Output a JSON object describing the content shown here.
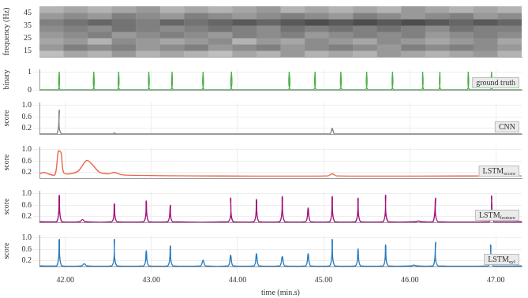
{
  "chart_data": [
    {
      "type": "heatmap",
      "y_label": "frequency (Hz)",
      "xlim": [
        41.7,
        47.3
      ],
      "ylim": [
        10,
        50
      ],
      "yticks": [
        15,
        25,
        35,
        45
      ],
      "xticks": [
        {
          "value": 42,
          "label": "42.00"
        },
        {
          "value": 43,
          "label": "43.00"
        },
        {
          "value": 44,
          "label": "44.00"
        },
        {
          "value": 45,
          "label": "45.00"
        },
        {
          "value": 46,
          "label": "46.00"
        },
        {
          "value": 47,
          "label": "47.00"
        }
      ],
      "tick_labels": "y",
      "grid": false,
      "cells": [
        [
          0.25,
          0.35,
          0.3,
          0.4,
          0.3,
          0.35,
          0.3,
          0.25,
          0.35,
          0.3,
          0.4,
          0.3,
          0.35,
          0.3,
          0.4,
          0.35,
          0.3,
          0.35,
          0.4,
          0.3
        ],
        [
          0.4,
          0.5,
          0.45,
          0.5,
          0.4,
          0.45,
          0.5,
          0.4,
          0.45,
          0.5,
          0.4,
          0.45,
          0.5,
          0.45,
          0.4,
          0.5,
          0.45,
          0.5,
          0.45,
          0.4
        ],
        [
          0.35,
          0.4,
          0.3,
          0.45,
          0.4,
          0.35,
          0.4,
          0.45,
          0.3,
          0.4,
          0.35,
          0.45,
          0.4,
          0.35,
          0.45,
          0.4,
          0.35,
          0.4,
          0.45,
          0.35
        ],
        [
          0.4,
          0.45,
          0.5,
          0.4,
          0.45,
          0.5,
          0.45,
          0.4,
          0.5,
          0.45,
          0.5,
          0.4,
          0.45,
          0.5,
          0.45,
          0.5,
          0.4,
          0.45,
          0.5,
          0.45
        ],
        [
          0.45,
          0.5,
          0.45,
          0.55,
          0.5,
          0.45,
          0.5,
          0.55,
          0.5,
          0.45,
          0.55,
          0.5,
          0.55,
          0.5,
          0.55,
          0.5,
          0.45,
          0.55,
          0.5,
          0.5
        ],
        [
          0.5,
          0.55,
          0.6,
          0.55,
          0.5,
          0.6,
          0.55,
          0.6,
          0.65,
          0.6,
          0.65,
          0.7,
          0.65,
          0.7,
          0.65,
          0.7,
          0.65,
          0.6,
          0.65,
          0.6
        ],
        [
          0.4,
          0.45,
          0.4,
          0.5,
          0.45,
          0.4,
          0.5,
          0.45,
          0.4,
          0.45,
          0.5,
          0.45,
          0.4,
          0.5,
          0.45,
          0.4,
          0.45,
          0.5,
          0.4,
          0.45
        ],
        [
          0.3,
          0.35,
          0.3,
          0.35,
          0.4,
          0.3,
          0.35,
          0.3,
          0.35,
          0.4,
          0.3,
          0.35,
          0.3,
          0.35,
          0.3,
          0.4,
          0.35,
          0.3,
          0.35,
          0.3
        ]
      ]
    },
    {
      "type": "line",
      "y_label": "binary",
      "legend": "lower right",
      "xlim": [
        41.7,
        47.3
      ],
      "ylim": [
        0,
        1.15
      ],
      "yticks": [
        0,
        1
      ],
      "xticks": [
        {
          "value": 42,
          "label": "42.00"
        },
        {
          "value": 43,
          "label": "43.00"
        },
        {
          "value": 44,
          "label": "44.00"
        },
        {
          "value": 45,
          "label": "45.00"
        },
        {
          "value": 46,
          "label": "46.00"
        },
        {
          "value": 47,
          "label": "47.00"
        }
      ],
      "tick_labels": "y",
      "grid": true,
      "series": [
        {
          "name": "ground truth",
          "color": "#4daf4a",
          "x": [
            41.7,
            41.915,
            41.93,
            41.945,
            42.315,
            42.33,
            42.345,
            42.605,
            42.62,
            42.635,
            42.955,
            42.97,
            42.985,
            43.225,
            43.24,
            43.255,
            43.585,
            43.6,
            43.615,
            43.915,
            43.93,
            43.945,
            44.585,
            44.6,
            44.615,
            44.885,
            44.9,
            44.915,
            45.185,
            45.2,
            45.215,
            45.485,
            45.5,
            45.515,
            45.785,
            45.8,
            45.815,
            46.135,
            46.15,
            46.165,
            46.335,
            46.35,
            46.365,
            46.665,
            46.68,
            46.695,
            46.935,
            46.95,
            46.965,
            47.3
          ],
          "values": [
            0,
            0,
            1,
            0,
            0,
            1,
            0,
            0,
            1,
            0,
            0,
            1,
            0,
            0,
            1,
            0,
            0,
            1,
            0,
            0,
            1,
            0,
            0,
            1,
            0,
            0,
            1,
            0,
            0,
            1,
            0,
            0,
            1,
            0,
            0,
            1,
            0,
            0,
            1,
            0,
            0,
            1,
            0,
            0,
            1,
            0,
            0,
            1,
            0,
            0
          ]
        }
      ]
    },
    {
      "type": "line",
      "y_label": "score",
      "legend": "lower right",
      "xlim": [
        41.7,
        47.3
      ],
      "ylim": [
        0,
        1.1
      ],
      "yticks": [
        0.2,
        0.6,
        {
          "value": 1,
          "label": "1.0"
        }
      ],
      "xticks": [
        {
          "value": 42,
          "label": "42.00"
        },
        {
          "value": 43,
          "label": "43.00"
        },
        {
          "value": 44,
          "label": "44.00"
        },
        {
          "value": 45,
          "label": "45.00"
        },
        {
          "value": 46,
          "label": "46.00"
        },
        {
          "value": 47,
          "label": "47.00"
        }
      ],
      "tick_labels": "y",
      "grid": true,
      "series": [
        {
          "name": "CNN",
          "color": "#808080",
          "x": [
            41.7,
            41.9,
            41.93,
            41.96,
            42.55,
            42.57,
            42.59,
            45.07,
            45.1,
            45.13,
            47.3
          ],
          "values": [
            0,
            0,
            0.83,
            0,
            0,
            0.04,
            0,
            0,
            0.2,
            0,
            0
          ]
        }
      ]
    },
    {
      "type": "line",
      "y_label": "score",
      "legend": "lower right",
      "xlim": [
        41.7,
        47.3
      ],
      "ylim": [
        0,
        1.1
      ],
      "yticks": [
        0.2,
        0.6,
        {
          "value": 1,
          "label": "1.0"
        }
      ],
      "xticks": [
        {
          "value": 42,
          "label": "42.00"
        },
        {
          "value": 43,
          "label": "43.00"
        },
        {
          "value": 44,
          "label": "44.00"
        },
        {
          "value": 45,
          "label": "45.00"
        },
        {
          "value": 46,
          "label": "46.00"
        },
        {
          "value": 47,
          "label": "47.00"
        }
      ],
      "tick_labels": "y",
      "grid": true,
      "series": [
        {
          "name": "LSTM",
          "subscript": "score",
          "color": "#e8674a",
          "x": [
            41.7,
            41.75,
            41.8,
            41.88,
            41.92,
            41.95,
            41.98,
            42.05,
            42.15,
            42.25,
            42.32,
            42.4,
            42.5,
            42.57,
            42.65,
            42.8,
            43.5,
            45.05,
            45.1,
            45.15,
            47.3
          ],
          "values": [
            0.15,
            0.2,
            0.15,
            0.12,
            0.95,
            0.9,
            0.2,
            0.15,
            0.25,
            0.62,
            0.45,
            0.2,
            0.15,
            0.2,
            0.12,
            0.1,
            0.08,
            0.08,
            0.15,
            0.08,
            0.08
          ]
        }
      ]
    },
    {
      "type": "line",
      "y_label": "score",
      "legend": "lower right",
      "xlim": [
        41.7,
        47.3
      ],
      "ylim": [
        0,
        1.1
      ],
      "yticks": [
        0.2,
        0.6,
        {
          "value": 1,
          "label": "1.0"
        }
      ],
      "xticks": [
        {
          "value": 42,
          "label": "42.00"
        },
        {
          "value": 43,
          "label": "43.00"
        },
        {
          "value": 44,
          "label": "44.00"
        },
        {
          "value": 45,
          "label": "45.00"
        },
        {
          "value": 46,
          "label": "46.00"
        },
        {
          "value": 47,
          "label": "47.00"
        }
      ],
      "tick_labels": "y",
      "grid": true,
      "series": [
        {
          "name": "LSTM",
          "subscript": "feature",
          "color": "#a0127a",
          "x": [
            41.7,
            41.9,
            41.93,
            41.96,
            42.17,
            42.2,
            42.23,
            42.54,
            42.57,
            42.6,
            42.91,
            42.94,
            42.97,
            43.19,
            43.22,
            43.25,
            43.89,
            43.92,
            43.95,
            44.19,
            44.22,
            44.25,
            44.49,
            44.52,
            44.55,
            44.79,
            44.82,
            44.85,
            45.07,
            45.1,
            45.13,
            45.37,
            45.4,
            45.43,
            45.69,
            45.72,
            45.75,
            46.07,
            46.1,
            46.13,
            46.27,
            46.3,
            46.33,
            46.92,
            46.95,
            46.98,
            47.3
          ],
          "values": [
            0.02,
            0.02,
            0.95,
            0.02,
            0.02,
            0.1,
            0.02,
            0.02,
            0.65,
            0.02,
            0.02,
            0.75,
            0.02,
            0.02,
            0.6,
            0.02,
            0.02,
            0.85,
            0.02,
            0.02,
            0.8,
            0.02,
            0.02,
            0.9,
            0.02,
            0.02,
            0.5,
            0.02,
            0.02,
            0.9,
            0.02,
            0.02,
            0.85,
            0.02,
            0.02,
            0.95,
            0.02,
            0.02,
            0.05,
            0.02,
            0.02,
            0.85,
            0.02,
            0.02,
            0.92,
            0.02,
            0.02
          ]
        }
      ]
    },
    {
      "type": "line",
      "y_label": "score",
      "x_label": "time (min.s)",
      "legend": "lower right",
      "xlim": [
        41.7,
        47.3
      ],
      "ylim": [
        0,
        1.1
      ],
      "yticks": [
        0.2,
        0.6,
        {
          "value": 1,
          "label": "1.0"
        }
      ],
      "xticks": [
        {
          "value": 42,
          "label": "42.00"
        },
        {
          "value": 43,
          "label": "43.00"
        },
        {
          "value": 44,
          "label": "44.00"
        },
        {
          "value": 45,
          "label": "45.00"
        },
        {
          "value": 46,
          "label": "46.00"
        },
        {
          "value": 47,
          "label": "47.00"
        }
      ],
      "grid": true,
      "series": [
        {
          "name": "LSTM",
          "subscript": "syl",
          "color": "#2b7bba",
          "x": [
            41.7,
            41.9,
            41.93,
            41.96,
            42.19,
            42.22,
            42.25,
            42.54,
            42.57,
            42.6,
            42.91,
            42.94,
            42.97,
            43.19,
            43.22,
            43.25,
            43.57,
            43.6,
            43.63,
            43.89,
            43.92,
            43.95,
            44.19,
            44.22,
            44.25,
            44.49,
            44.52,
            44.55,
            44.79,
            44.82,
            44.85,
            45.07,
            45.1,
            45.13,
            45.37,
            45.4,
            45.43,
            45.69,
            45.72,
            45.75,
            46.02,
            46.05,
            46.08,
            46.27,
            46.3,
            46.33,
            46.91,
            46.94,
            46.97,
            47.3
          ],
          "values": [
            0.02,
            0.02,
            0.95,
            0.02,
            0.02,
            0.1,
            0.02,
            0.02,
            0.95,
            0.02,
            0.02,
            0.55,
            0.02,
            0.02,
            0.72,
            0.02,
            0.02,
            0.22,
            0.02,
            0.02,
            0.4,
            0.02,
            0.02,
            0.45,
            0.02,
            0.02,
            0.35,
            0.02,
            0.02,
            0.45,
            0.02,
            0.02,
            0.95,
            0.02,
            0.02,
            0.62,
            0.02,
            0.02,
            0.75,
            0.02,
            0.02,
            0.05,
            0.02,
            0.02,
            0.85,
            0.02,
            0.02,
            0.75,
            0.02,
            0.02
          ]
        }
      ]
    }
  ]
}
